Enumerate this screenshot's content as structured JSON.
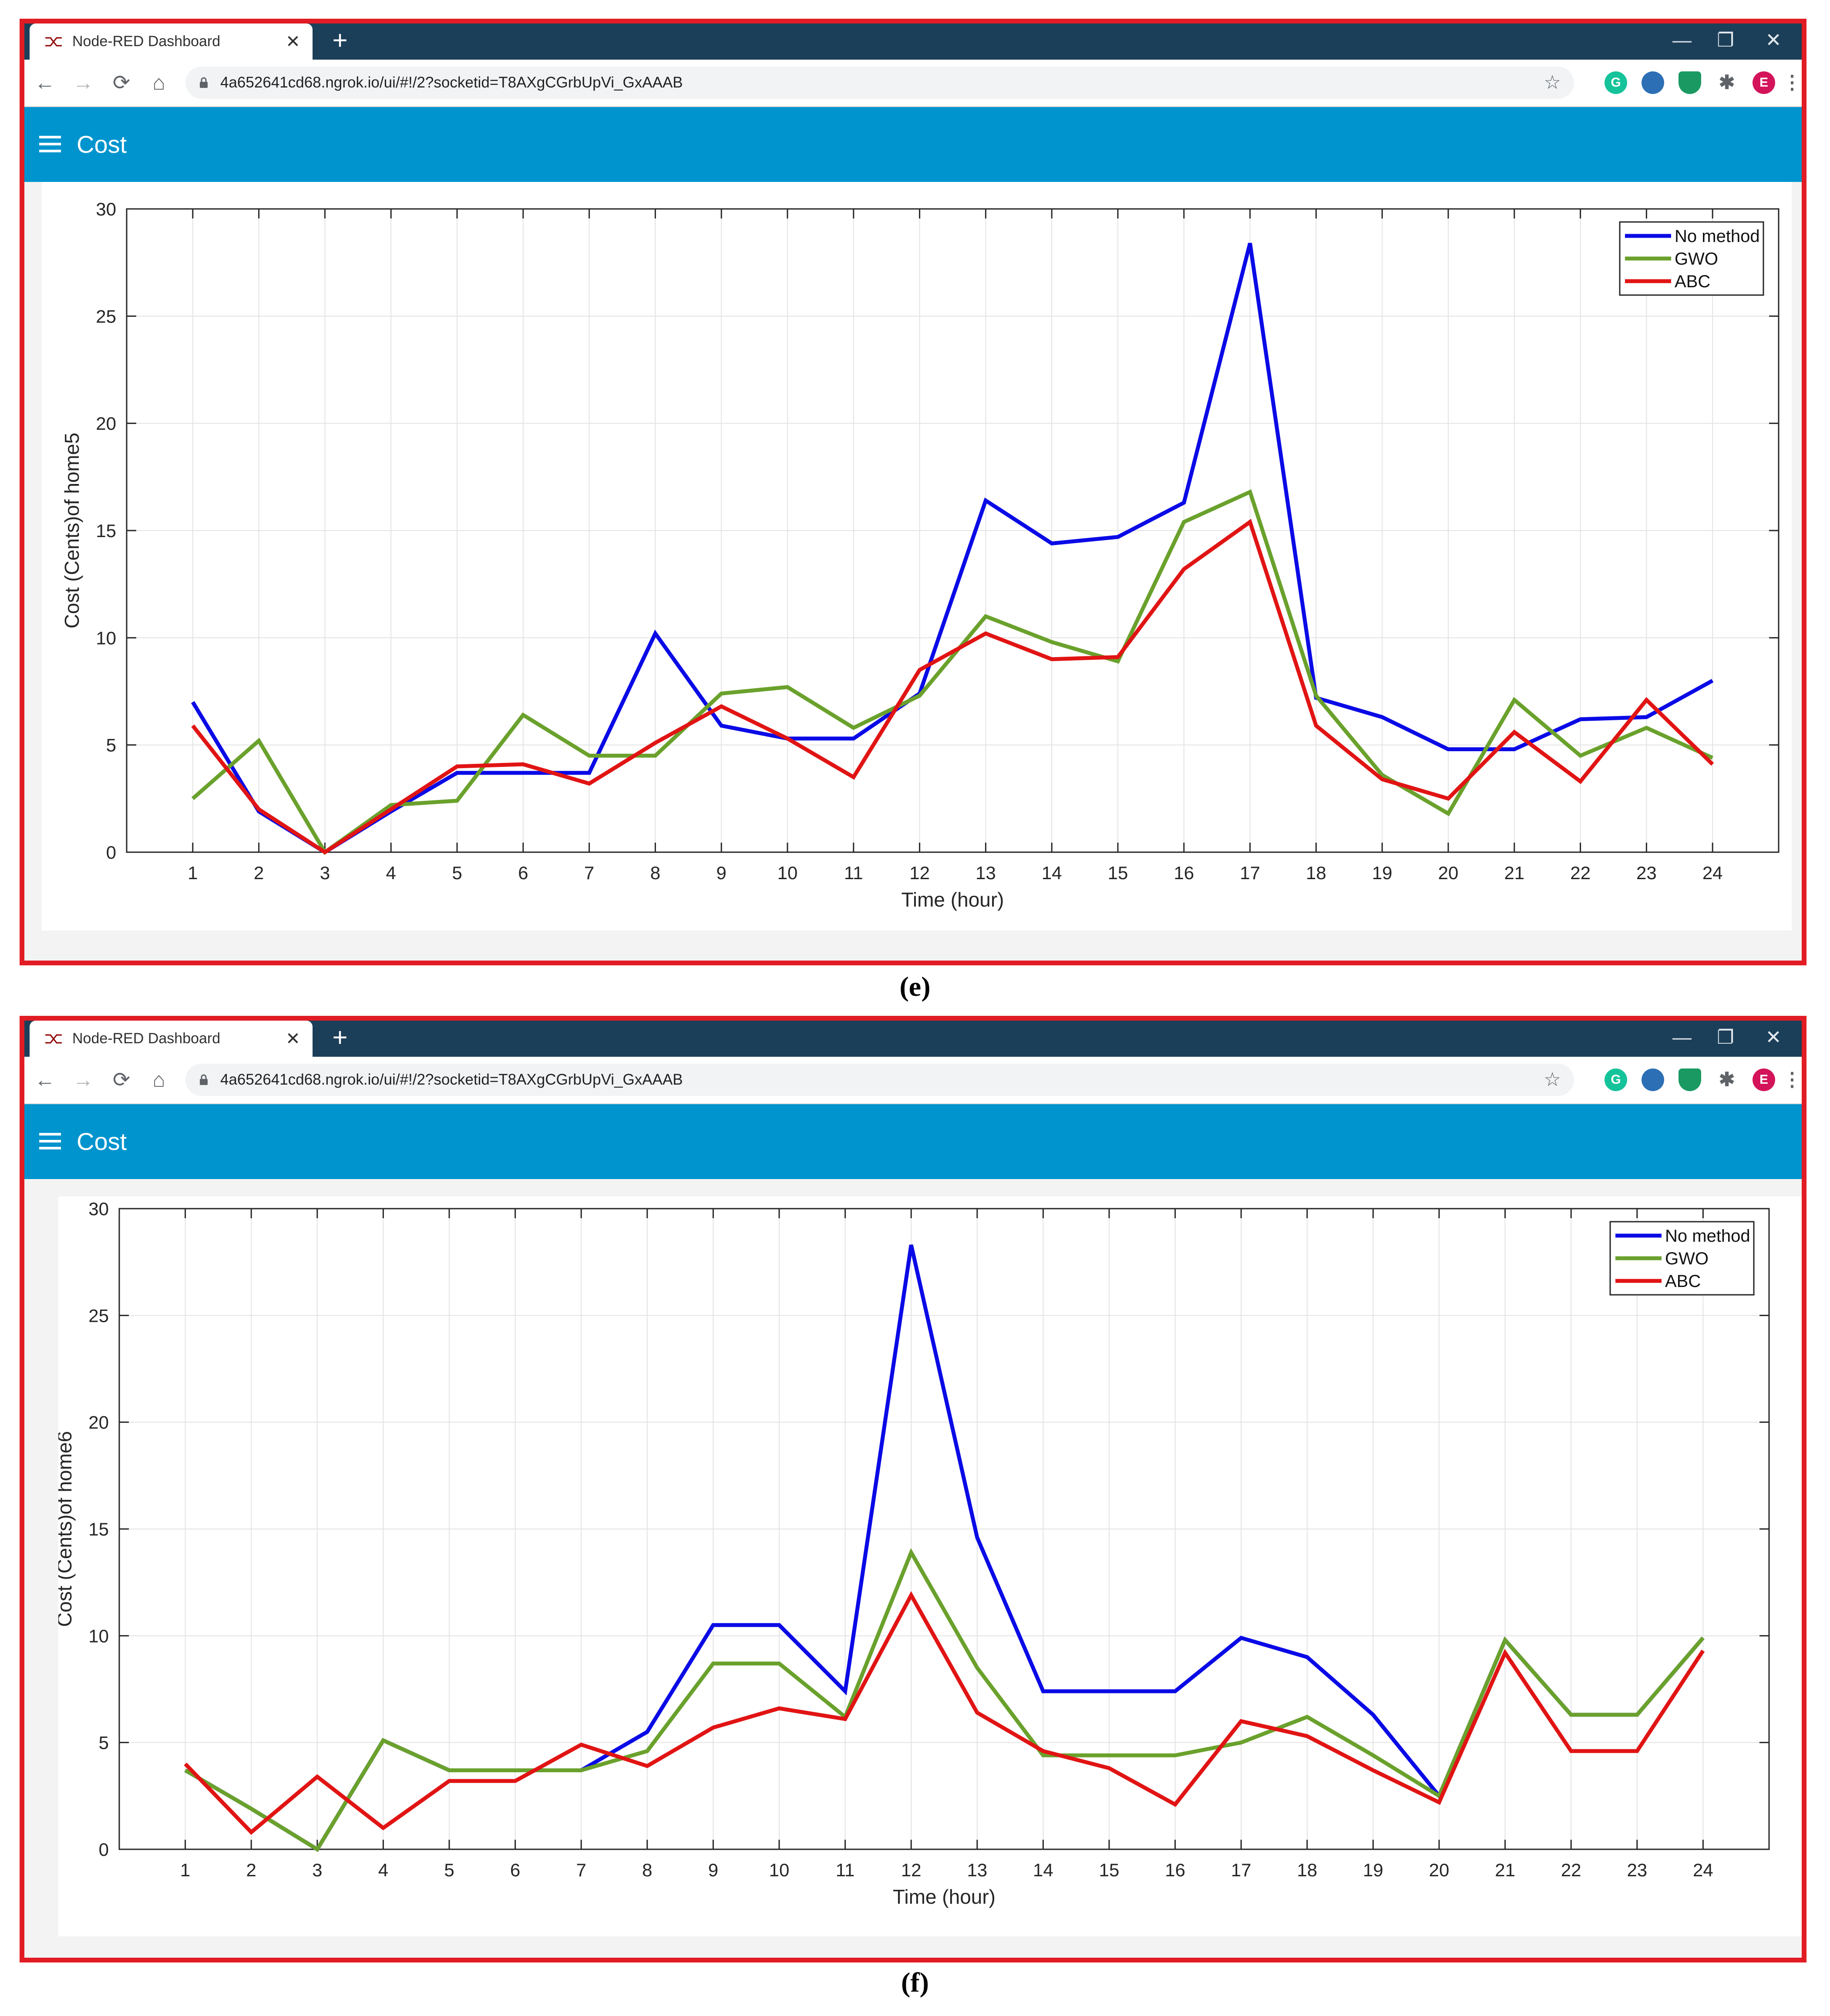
{
  "browser": {
    "tab_title": "Node-RED Dashboard",
    "tab_close": "✕",
    "new_tab": "+",
    "url": "4a652641cd68.ngrok.io/ui/#!/2?socketid=T8AXgCGrbUpVi_GxAAAB",
    "profile_initial": "E",
    "grammarly_initial": "G",
    "nav": {
      "back": "←",
      "forward": "→",
      "reload": "⟳",
      "home": "⌂",
      "star": "☆",
      "menu": "⋮",
      "extensions": "✱"
    },
    "window": {
      "minimize": "—",
      "restore": "❐",
      "close": "✕"
    }
  },
  "app": {
    "title": "Cost"
  },
  "colors": {
    "no_method": "#0a0ae6",
    "gwo": "#6aa12c",
    "abc": "#e11414",
    "accent": "#0094ce",
    "frame": "#e11c24",
    "tabbar": "#1c3f59"
  },
  "captions": {
    "e": "(e)",
    "f": "(f)"
  },
  "chart_data": [
    {
      "type": "line",
      "panel": "e",
      "xlabel": "Time (hour)",
      "ylabel": "Cost (Cents)of home5",
      "x": [
        1,
        2,
        3,
        4,
        5,
        6,
        7,
        8,
        9,
        10,
        11,
        12,
        13,
        14,
        15,
        16,
        17,
        18,
        19,
        20,
        21,
        22,
        23,
        24
      ],
      "xlim": [
        0,
        25
      ],
      "ylim": [
        0,
        30
      ],
      "yticks": [
        0,
        5,
        10,
        15,
        20,
        25,
        30
      ],
      "grid": true,
      "legend_position": "top-right",
      "series": [
        {
          "name": "No method",
          "color": "#0a0ae6",
          "values": [
            7.0,
            1.9,
            0,
            1.9,
            3.7,
            3.7,
            3.7,
            10.2,
            5.9,
            5.3,
            5.3,
            7.4,
            16.4,
            14.4,
            14.7,
            16.3,
            28.4,
            7.2,
            6.3,
            4.8,
            4.8,
            6.2,
            6.3,
            8.0
          ]
        },
        {
          "name": "GWO",
          "color": "#6aa12c",
          "values": [
            2.5,
            5.2,
            0,
            2.2,
            2.4,
            6.4,
            4.5,
            4.5,
            7.4,
            7.7,
            5.8,
            7.3,
            11.0,
            9.8,
            8.9,
            15.4,
            16.8,
            7.3,
            3.6,
            1.8,
            7.1,
            4.5,
            5.8,
            4.4
          ]
        },
        {
          "name": "ABC",
          "color": "#e11414",
          "values": [
            5.9,
            2.0,
            0,
            2.0,
            4.0,
            4.1,
            3.2,
            5.1,
            6.8,
            5.3,
            3.5,
            8.5,
            10.2,
            9.0,
            9.1,
            13.2,
            15.4,
            5.9,
            3.4,
            2.5,
            5.6,
            3.3,
            7.1,
            4.1
          ]
        }
      ]
    },
    {
      "type": "line",
      "panel": "f",
      "xlabel": "Time (hour)",
      "ylabel": "Cost (Cents)of home6",
      "x": [
        1,
        2,
        3,
        4,
        5,
        6,
        7,
        8,
        9,
        10,
        11,
        12,
        13,
        14,
        15,
        16,
        17,
        18,
        19,
        20,
        21,
        22,
        23,
        24
      ],
      "xlim": [
        0,
        25
      ],
      "ylim": [
        0,
        30
      ],
      "yticks": [
        0,
        5,
        10,
        15,
        20,
        25,
        30
      ],
      "grid": true,
      "legend_position": "top-right",
      "series": [
        {
          "name": "No method",
          "color": "#0a0ae6",
          "values": [
            3.7,
            1.9,
            0,
            5.1,
            3.7,
            3.7,
            3.7,
            5.5,
            10.5,
            10.5,
            7.4,
            28.3,
            14.6,
            7.4,
            7.4,
            7.4,
            9.9,
            9.0,
            6.3,
            2.5,
            9.8,
            6.3,
            6.3,
            9.9
          ]
        },
        {
          "name": "GWO",
          "color": "#6aa12c",
          "values": [
            3.7,
            1.9,
            0,
            5.1,
            3.7,
            3.7,
            3.7,
            4.6,
            8.7,
            8.7,
            6.2,
            13.9,
            8.5,
            4.4,
            4.4,
            4.4,
            5.0,
            6.2,
            4.4,
            2.5,
            9.8,
            6.3,
            6.3,
            9.9
          ]
        },
        {
          "name": "ABC",
          "color": "#e11414",
          "values": [
            4.0,
            0.8,
            3.4,
            1.0,
            3.2,
            3.2,
            4.9,
            3.9,
            5.7,
            6.6,
            6.1,
            11.9,
            6.4,
            4.6,
            3.8,
            2.1,
            6.0,
            5.3,
            3.7,
            2.2,
            9.2,
            4.6,
            4.6,
            9.3
          ]
        }
      ]
    }
  ]
}
